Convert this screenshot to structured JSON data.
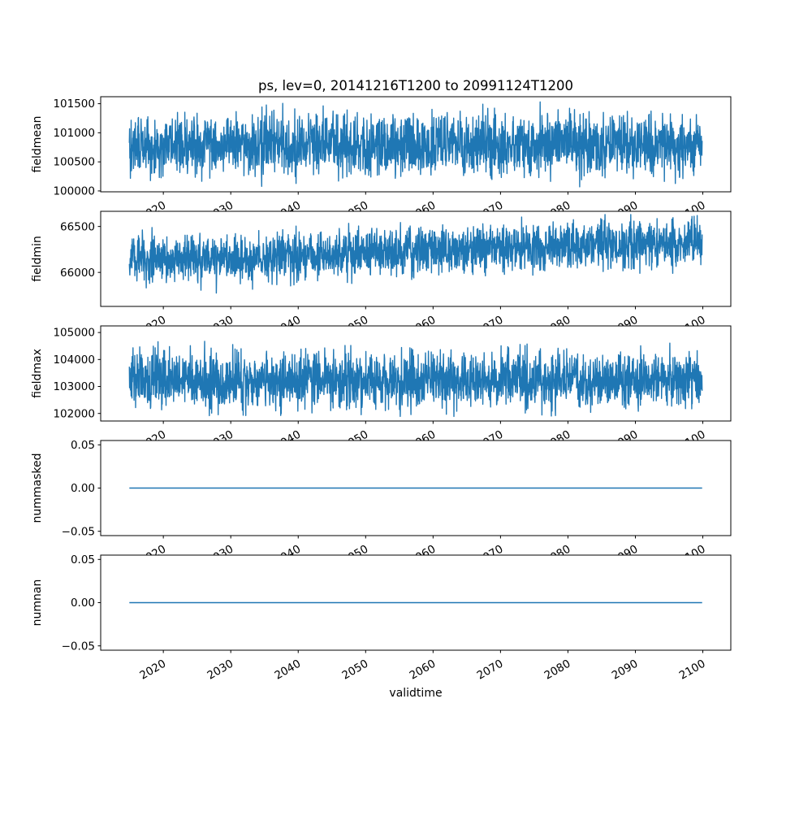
{
  "figure": {
    "background": "#ffffff",
    "frame_color": "#000000",
    "line_color": "#1f77b4"
  },
  "chart_data": {
    "type": "line",
    "title": "ps, lev=0, 20141216T1200 to 20991124T1200",
    "xlabel": "validtime",
    "x_start": 2014.96,
    "x_end": 2099.9,
    "xlim": [
      2010.71,
      2104.15
    ],
    "xticks": [
      2020,
      2030,
      2040,
      2050,
      2060,
      2070,
      2080,
      2090,
      2100
    ],
    "xtick_labels": [
      "2020",
      "2030",
      "2040",
      "2050",
      "2060",
      "2070",
      "2080",
      "2090",
      "2100"
    ],
    "xtick_rotation_deg": 30,
    "n_points": 2200,
    "line_color": "#1f77b4",
    "grid": false,
    "legend": "none",
    "subplots": [
      {
        "ylabel": "fieldmean",
        "ylim": [
          99985,
          101620
        ],
        "yticks": [
          100000,
          100500,
          101000,
          101500
        ],
        "ytick_labels": [
          "100000",
          "100500",
          "101000",
          "101500"
        ],
        "series": {
          "name": "fieldmean",
          "kind": "noise",
          "base": 100790,
          "trend_total": 0,
          "std": 255,
          "min": 100070,
          "max": 101530,
          "seed": 101
        }
      },
      {
        "ylabel": "fieldmin",
        "ylim": [
          65630,
          66665
        ],
        "yticks": [
          66000,
          66500
        ],
        "ytick_labels": [
          "66000",
          "66500"
        ],
        "series": {
          "name": "fieldmin",
          "kind": "noise",
          "base": 66135,
          "trend_total": 195,
          "std": 125,
          "min": 65660,
          "max": 66630,
          "seed": 202
        }
      },
      {
        "ylabel": "fieldmax",
        "ylim": [
          101720,
          105245
        ],
        "yticks": [
          102000,
          103000,
          104000,
          105000
        ],
        "ytick_labels": [
          "102000",
          "103000",
          "104000",
          "105000"
        ],
        "series": {
          "name": "fieldmax",
          "kind": "noise",
          "base": 103220,
          "trend_total": 0,
          "std": 500,
          "min": 101890,
          "max": 105070,
          "seed": 303
        }
      },
      {
        "ylabel": "nummasked",
        "ylim": [
          -0.055,
          0.055
        ],
        "yticks": [
          -0.05,
          0,
          0.05
        ],
        "ytick_labels": [
          "−0.05",
          "0.00",
          "0.05"
        ],
        "series": {
          "name": "nummasked",
          "kind": "constant",
          "base": 0,
          "trend_total": 0,
          "std": 0,
          "min": 0,
          "max": 0,
          "seed": 404
        }
      },
      {
        "ylabel": "numnan",
        "ylim": [
          -0.055,
          0.055
        ],
        "yticks": [
          -0.05,
          0,
          0.05
        ],
        "ytick_labels": [
          "−0.05",
          "0.00",
          "0.05"
        ],
        "series": {
          "name": "numnan",
          "kind": "constant",
          "base": 0,
          "trend_total": 0,
          "std": 0,
          "min": 0,
          "max": 0,
          "seed": 505
        }
      }
    ]
  }
}
